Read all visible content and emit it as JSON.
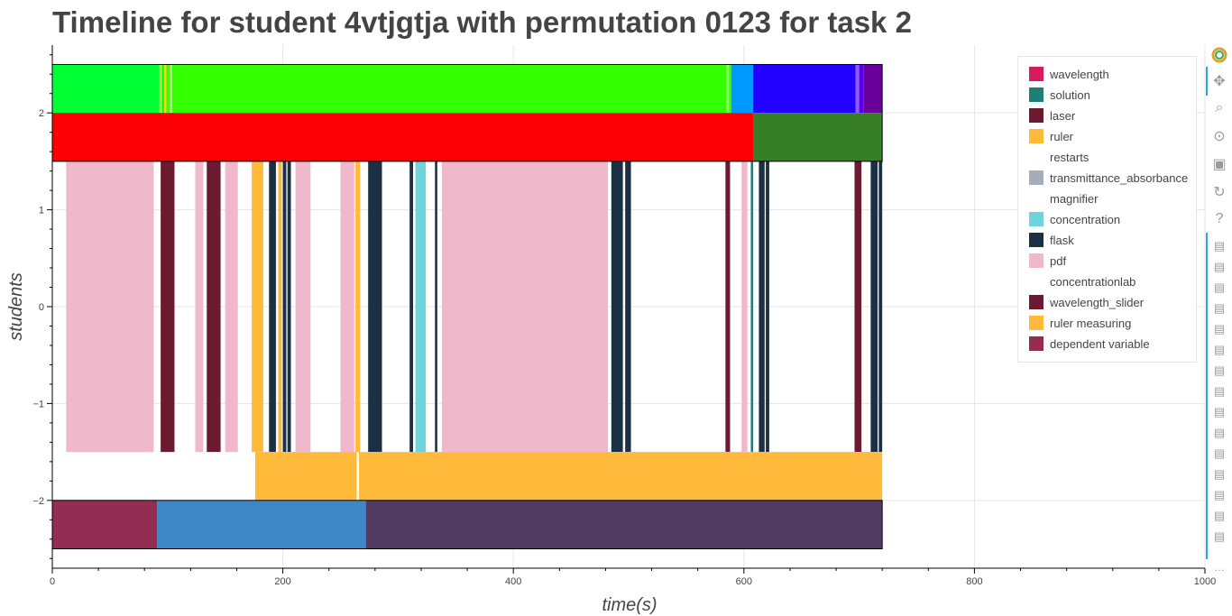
{
  "chart_data": {
    "type": "timeline",
    "title": "Timeline for student 4vtjgtja with permutation 0123 for task 2",
    "xlabel": "time(s)",
    "ylabel": "students",
    "xlim": [
      0,
      1000
    ],
    "ylim": [
      -2.7,
      2.7
    ],
    "x_ticks": [
      "0",
      "200",
      "400",
      "600",
      "800",
      "1000"
    ],
    "y_ticks": [
      "−2",
      "−1",
      "0",
      "1",
      "2"
    ],
    "y_tick_values": [
      -2,
      -1,
      0,
      1,
      2
    ],
    "x_tick_values": [
      0,
      200,
      400,
      600,
      800,
      1000
    ],
    "legend": [
      {
        "label": "wavelength",
        "color": "#d81b60"
      },
      {
        "label": "solution",
        "color": "#1e7f7a"
      },
      {
        "label": "laser",
        "color": "#6b1a2f"
      },
      {
        "label": "ruler",
        "color": "#ffba3b"
      },
      {
        "label": "restarts",
        "color": "#ffffff"
      },
      {
        "label": "transmittance_absorbance",
        "color": "#a3adbb"
      },
      {
        "label": "magnifier",
        "color": "#ffffff"
      },
      {
        "label": "concentration",
        "color": "#70d4dc"
      },
      {
        "label": "flask",
        "color": "#1c3045"
      },
      {
        "label": "pdf",
        "color": "#f0b8cb"
      },
      {
        "label": "concentrationlab",
        "color": "#ffffff"
      },
      {
        "label": "wavelength_slider",
        "color": "#6b1a2f"
      },
      {
        "label": "ruler measuring",
        "color": "#ffba3b"
      },
      {
        "label": "dependent variable",
        "color": "#942d52"
      }
    ],
    "rows": [
      {
        "y_range": [
          2,
          2.5
        ],
        "segments": [
          {
            "x0": 0,
            "x1": 93,
            "color": "#00ff33"
          },
          {
            "x0": 93,
            "x1": 95,
            "color": "#aaff33"
          },
          {
            "x0": 95,
            "x1": 97,
            "color": "#00ff33"
          },
          {
            "x0": 97,
            "x1": 99,
            "color": "#ffd700"
          },
          {
            "x0": 99,
            "x1": 102,
            "color": "#33ff00"
          },
          {
            "x0": 102,
            "x1": 104,
            "color": "#99ff66"
          },
          {
            "x0": 104,
            "x1": 585,
            "color": "#33ff00"
          },
          {
            "x0": 585,
            "x1": 587,
            "color": "#99ff66"
          },
          {
            "x0": 587,
            "x1": 589,
            "color": "#33ff00"
          },
          {
            "x0": 589,
            "x1": 608,
            "color": "#0099ff"
          },
          {
            "x0": 608,
            "x1": 697,
            "color": "#2200ff"
          },
          {
            "x0": 697,
            "x1": 700,
            "color": "#9955ff"
          },
          {
            "x0": 700,
            "x1": 704,
            "color": "#5500ee"
          },
          {
            "x0": 704,
            "x1": 720,
            "color": "#6a0099"
          }
        ]
      },
      {
        "y_range": [
          1.5,
          2
        ],
        "segments": [
          {
            "x0": 0,
            "x1": 608,
            "color": "#fa0005"
          },
          {
            "x0": 608,
            "x1": 720,
            "color": "#367f27"
          }
        ]
      },
      {
        "y_range": [
          -1.5,
          1.5
        ],
        "segments": [
          {
            "x0": 12,
            "x1": 88,
            "color": "#f0b8cb"
          },
          {
            "x0": 94,
            "x1": 106,
            "color": "#6b1a2f"
          },
          {
            "x0": 124,
            "x1": 131,
            "color": "#f0b8cb"
          },
          {
            "x0": 134,
            "x1": 146,
            "color": "#6b1a2f"
          },
          {
            "x0": 150,
            "x1": 161,
            "color": "#f0b8cb"
          },
          {
            "x0": 173,
            "x1": 183,
            "color": "#ffba3b"
          },
          {
            "x0": 188,
            "x1": 194,
            "color": "#1c3045"
          },
          {
            "x0": 196,
            "x1": 199,
            "color": "#ffba3b"
          },
          {
            "x0": 200,
            "x1": 203,
            "color": "#1c3045"
          },
          {
            "x0": 204,
            "x1": 207,
            "color": "#1c3045"
          },
          {
            "x0": 211,
            "x1": 224,
            "color": "#f0b8cb"
          },
          {
            "x0": 250,
            "x1": 262,
            "color": "#f0b8cb"
          },
          {
            "x0": 263,
            "x1": 267,
            "color": "#ffba3b"
          },
          {
            "x0": 274,
            "x1": 286,
            "color": "#1c3045"
          },
          {
            "x0": 310,
            "x1": 313,
            "color": "#1c3045"
          },
          {
            "x0": 315,
            "x1": 324,
            "color": "#70d4dc"
          },
          {
            "x0": 332,
            "x1": 334,
            "color": "#1c3045"
          },
          {
            "x0": 338,
            "x1": 482,
            "color": "#f0b8cb"
          },
          {
            "x0": 485,
            "x1": 495,
            "color": "#1c3045"
          },
          {
            "x0": 497,
            "x1": 502,
            "color": "#1c3045"
          },
          {
            "x0": 584,
            "x1": 588,
            "color": "#6b1a2f"
          },
          {
            "x0": 598,
            "x1": 603,
            "color": "#f0b8cb"
          },
          {
            "x0": 606,
            "x1": 608,
            "color": "#1e7f7a"
          },
          {
            "x0": 613,
            "x1": 618,
            "color": "#1c3045"
          },
          {
            "x0": 619,
            "x1": 622,
            "color": "#1c3045"
          },
          {
            "x0": 696,
            "x1": 702,
            "color": "#6b1a2f"
          },
          {
            "x0": 710,
            "x1": 716,
            "color": "#1c3045"
          },
          {
            "x0": 717,
            "x1": 720,
            "color": "#1c3045"
          }
        ]
      },
      {
        "y_range": [
          -2,
          -1.5
        ],
        "segments": [
          {
            "x0": 176,
            "x1": 264,
            "color": "#ffba3b"
          },
          {
            "x0": 266,
            "x1": 720,
            "color": "#ffba3b"
          }
        ]
      },
      {
        "y_range": [
          -2.5,
          -2
        ],
        "segments": [
          {
            "x0": 0,
            "x1": 91,
            "color": "#942d52"
          },
          {
            "x0": 91,
            "x1": 272,
            "color": "#3e87c7"
          },
          {
            "x0": 272,
            "x1": 720,
            "color": "#523b63"
          }
        ]
      }
    ],
    "grid": true
  },
  "toolbar": {
    "icons": [
      "bokeh-logo-icon",
      "pan-icon",
      "box-zoom-icon",
      "wheel-zoom-icon",
      "save-icon",
      "reset-icon",
      "help-icon",
      "hover-icon",
      "more-icon"
    ],
    "more_label": "…"
  }
}
